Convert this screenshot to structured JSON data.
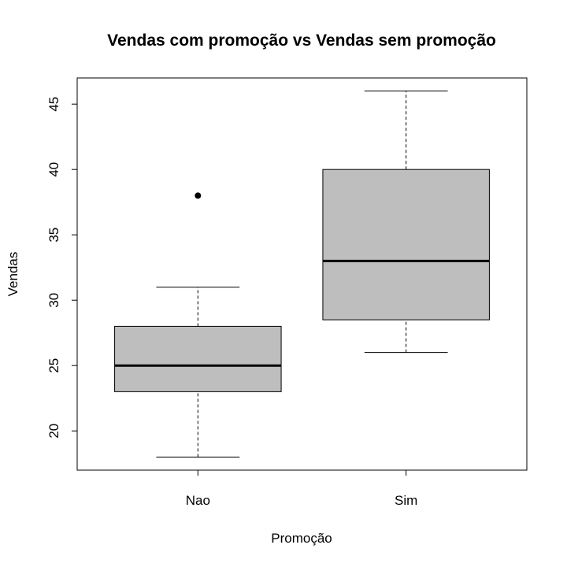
{
  "chart_data": {
    "type": "boxplot",
    "title": "Vendas com promoção vs Vendas sem promoção",
    "xlabel": "Promoção",
    "ylabel": "Vendas",
    "categories": [
      "Nao",
      "Sim"
    ],
    "ylim": [
      17,
      47
    ],
    "yticks": [
      20,
      25,
      30,
      35,
      40,
      45
    ],
    "grid": false,
    "box_color": "#bebebe",
    "boxes": [
      {
        "category": "Nao",
        "whisker_low": 18,
        "q1": 23,
        "median": 25,
        "q3": 28,
        "whisker_high": 31,
        "outliers": [
          38
        ]
      },
      {
        "category": "Sim",
        "whisker_low": 26,
        "q1": 28.5,
        "median": 33,
        "q3": 40,
        "whisker_high": 46,
        "outliers": []
      }
    ]
  }
}
